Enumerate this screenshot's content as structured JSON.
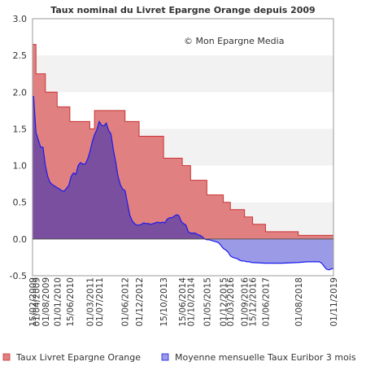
{
  "chart_data": {
    "type": "area",
    "title": "Taux nominal du Livret Epargne Orange depuis 2009",
    "watermark": "© Mon Epargne Media",
    "ylim": [
      -0.5,
      3.0
    ],
    "yticks": [
      "3.0",
      "2.5",
      "2.0",
      "1.5",
      "1.0",
      "0.5",
      "0.0",
      "-0.5"
    ],
    "ytick_values": [
      3.0,
      2.5,
      2.0,
      1.5,
      1.0,
      0.5,
      0.0,
      -0.5
    ],
    "xlim": [
      "2009-02-15",
      "2019-11-01"
    ],
    "xticks": [
      {
        "date": "2009-02-15",
        "label": "15/02/2009"
      },
      {
        "date": "2009-04-01",
        "label": "01/04/2009"
      },
      {
        "date": "2009-08-01",
        "label": "01/08/2009"
      },
      {
        "date": "2010-01-01",
        "label": "01/01/2010"
      },
      {
        "date": "2010-06-15",
        "label": "15/06/2010"
      },
      {
        "date": "2011-03-01",
        "label": "01/03/2011"
      },
      {
        "date": "2011-07-01",
        "label": "01/07/2011"
      },
      {
        "date": "2012-06-01",
        "label": "01/06/2012"
      },
      {
        "date": "2012-12-01",
        "label": "01/12/2012"
      },
      {
        "date": "2013-10-15",
        "label": "15/10/2013"
      },
      {
        "date": "2014-06-15",
        "label": "15/06/2014"
      },
      {
        "date": "2014-10-01",
        "label": "01/10/2014"
      },
      {
        "date": "2015-05-01",
        "label": "01/05/2015"
      },
      {
        "date": "2015-12-01",
        "label": "01/12/2015"
      },
      {
        "date": "2016-03-01",
        "label": "01/03/2016"
      },
      {
        "date": "2016-09-01",
        "label": "01/09/2016"
      },
      {
        "date": "2016-12-15",
        "label": "15/12/2016"
      },
      {
        "date": "2017-06-01",
        "label": "01/06/2017"
      },
      {
        "date": "2018-08-01",
        "label": "01/08/2018"
      },
      {
        "date": "2019-11-01",
        "label": "01/11/2019"
      }
    ],
    "grid": "alternating horizontal bands",
    "legend_position": "bottom",
    "series": [
      {
        "name": "Taux Livret Epargne Orange",
        "kind": "step",
        "color": "#cc3333",
        "fill": "#e08080",
        "points": [
          [
            "2009-02-15",
            2.65
          ],
          [
            "2009-04-01",
            2.25
          ],
          [
            "2009-08-01",
            2.0
          ],
          [
            "2010-01-01",
            1.8
          ],
          [
            "2010-06-15",
            1.6
          ],
          [
            "2011-03-01",
            1.5
          ],
          [
            "2011-05-01",
            1.75
          ],
          [
            "2012-06-01",
            1.6
          ],
          [
            "2012-12-01",
            1.4
          ],
          [
            "2013-10-15",
            1.1
          ],
          [
            "2014-06-15",
            1.0
          ],
          [
            "2014-10-01",
            0.8
          ],
          [
            "2015-05-01",
            0.6
          ],
          [
            "2015-12-01",
            0.5
          ],
          [
            "2016-03-01",
            0.4
          ],
          [
            "2016-09-01",
            0.3
          ],
          [
            "2016-12-15",
            0.2
          ],
          [
            "2017-06-01",
            0.1
          ],
          [
            "2018-08-01",
            0.05
          ],
          [
            "2019-11-01",
            0.05
          ]
        ]
      },
      {
        "name": "Moyenne mensuelle Taux Euribor 3 mois",
        "kind": "line",
        "color": "#1a1aee",
        "fill_positive": "#7a4fa0",
        "fill_negative": "#9a9ae6",
        "points": [
          [
            "2009-02-15",
            1.94
          ],
          [
            "2009-03-01",
            1.94
          ],
          [
            "2009-04-01",
            1.45
          ],
          [
            "2009-05-01",
            1.35
          ],
          [
            "2009-06-01",
            1.25
          ],
          [
            "2009-07-01",
            1.25
          ],
          [
            "2009-08-01",
            1.0
          ],
          [
            "2009-09-01",
            0.85
          ],
          [
            "2009-10-01",
            0.77
          ],
          [
            "2009-11-01",
            0.74
          ],
          [
            "2009-12-01",
            0.72
          ],
          [
            "2010-01-01",
            0.7
          ],
          [
            "2010-02-01",
            0.68
          ],
          [
            "2010-03-01",
            0.66
          ],
          [
            "2010-04-01",
            0.65
          ],
          [
            "2010-05-01",
            0.69
          ],
          [
            "2010-06-01",
            0.73
          ],
          [
            "2010-07-01",
            0.85
          ],
          [
            "2010-08-01",
            0.9
          ],
          [
            "2010-09-01",
            0.88
          ],
          [
            "2010-10-01",
            1.0
          ],
          [
            "2010-11-01",
            1.04
          ],
          [
            "2010-12-01",
            1.02
          ],
          [
            "2011-01-01",
            1.02
          ],
          [
            "2011-02-01",
            1.09
          ],
          [
            "2011-03-01",
            1.18
          ],
          [
            "2011-04-01",
            1.32
          ],
          [
            "2011-05-01",
            1.42
          ],
          [
            "2011-06-01",
            1.49
          ],
          [
            "2011-07-01",
            1.6
          ],
          [
            "2011-08-01",
            1.55
          ],
          [
            "2011-09-01",
            1.54
          ],
          [
            "2011-10-01",
            1.58
          ],
          [
            "2011-11-01",
            1.48
          ],
          [
            "2011-12-01",
            1.43
          ],
          [
            "2012-01-01",
            1.22
          ],
          [
            "2012-02-01",
            1.05
          ],
          [
            "2012-03-01",
            0.86
          ],
          [
            "2012-04-01",
            0.74
          ],
          [
            "2012-05-01",
            0.68
          ],
          [
            "2012-06-01",
            0.66
          ],
          [
            "2012-07-01",
            0.5
          ],
          [
            "2012-08-01",
            0.33
          ],
          [
            "2012-09-01",
            0.25
          ],
          [
            "2012-10-01",
            0.21
          ],
          [
            "2012-11-01",
            0.19
          ],
          [
            "2012-12-01",
            0.19
          ],
          [
            "2013-01-01",
            0.2
          ],
          [
            "2013-02-01",
            0.22
          ],
          [
            "2013-03-01",
            0.21
          ],
          [
            "2013-04-01",
            0.21
          ],
          [
            "2013-05-01",
            0.2
          ],
          [
            "2013-06-01",
            0.21
          ],
          [
            "2013-07-01",
            0.22
          ],
          [
            "2013-08-01",
            0.23
          ],
          [
            "2013-09-01",
            0.22
          ],
          [
            "2013-10-01",
            0.23
          ],
          [
            "2013-11-01",
            0.22
          ],
          [
            "2013-12-01",
            0.27
          ],
          [
            "2014-01-01",
            0.29
          ],
          [
            "2014-02-01",
            0.29
          ],
          [
            "2014-03-01",
            0.31
          ],
          [
            "2014-04-01",
            0.33
          ],
          [
            "2014-05-01",
            0.32
          ],
          [
            "2014-06-01",
            0.24
          ],
          [
            "2014-07-01",
            0.21
          ],
          [
            "2014-08-01",
            0.19
          ],
          [
            "2014-09-01",
            0.1
          ],
          [
            "2014-10-01",
            0.08
          ],
          [
            "2014-11-01",
            0.08
          ],
          [
            "2014-12-01",
            0.08
          ],
          [
            "2015-01-01",
            0.06
          ],
          [
            "2015-02-01",
            0.05
          ],
          [
            "2015-03-01",
            0.03
          ],
          [
            "2015-04-01",
            0.0
          ],
          [
            "2015-05-01",
            -0.01
          ],
          [
            "2015-06-01",
            -0.01
          ],
          [
            "2015-07-01",
            -0.02
          ],
          [
            "2015-08-01",
            -0.03
          ],
          [
            "2015-09-01",
            -0.04
          ],
          [
            "2015-10-01",
            -0.05
          ],
          [
            "2015-11-01",
            -0.09
          ],
          [
            "2015-12-01",
            -0.13
          ],
          [
            "2016-01-01",
            -0.15
          ],
          [
            "2016-02-01",
            -0.18
          ],
          [
            "2016-03-01",
            -0.23
          ],
          [
            "2016-04-01",
            -0.25
          ],
          [
            "2016-05-01",
            -0.26
          ],
          [
            "2016-06-01",
            -0.27
          ],
          [
            "2016-07-01",
            -0.29
          ],
          [
            "2016-08-01",
            -0.3
          ],
          [
            "2016-09-01",
            -0.3
          ],
          [
            "2016-10-01",
            -0.31
          ],
          [
            "2016-11-01",
            -0.31
          ],
          [
            "2016-12-01",
            -0.32
          ],
          [
            "2017-06-01",
            -0.33
          ],
          [
            "2018-01-01",
            -0.33
          ],
          [
            "2018-08-01",
            -0.32
          ],
          [
            "2018-12-01",
            -0.31
          ],
          [
            "2019-03-01",
            -0.31
          ],
          [
            "2019-05-01",
            -0.31
          ],
          [
            "2019-06-01",
            -0.33
          ],
          [
            "2019-07-01",
            -0.37
          ],
          [
            "2019-08-01",
            -0.41
          ],
          [
            "2019-09-01",
            -0.42
          ],
          [
            "2019-10-01",
            -0.41
          ],
          [
            "2019-11-01",
            -0.4
          ]
        ]
      }
    ]
  }
}
